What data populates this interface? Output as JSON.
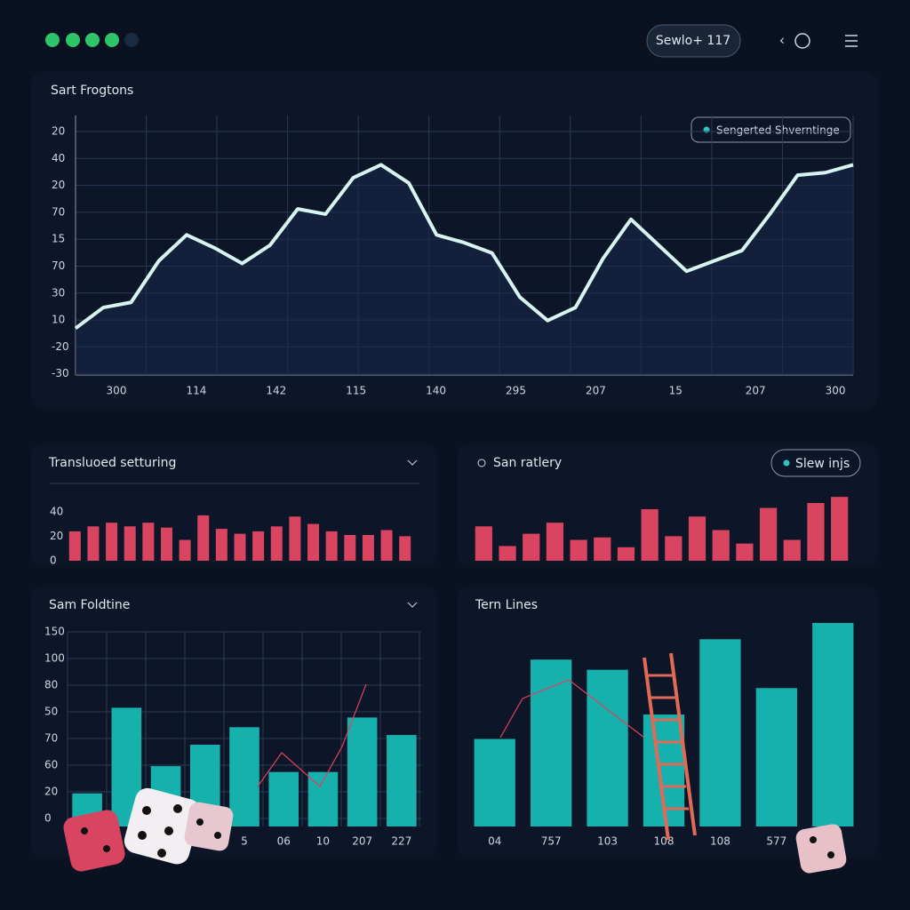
{
  "header": {
    "status_pill": "Sewlo+ 117"
  },
  "main_chart": {
    "type": "line",
    "title": "Sart Frogtons",
    "legend": "Sengerted Shverntinge",
    "y_labels": [
      "20",
      "40",
      "20",
      "70",
      "15",
      "70",
      "30",
      "10",
      "-20",
      "-30"
    ],
    "x_labels": [
      "300",
      "114",
      "142",
      "115",
      "140",
      "295",
      "207",
      "15",
      "207",
      "300"
    ],
    "values": [
      18,
      26,
      28,
      44,
      54,
      49,
      43,
      50,
      64,
      62,
      76,
      81,
      74,
      54,
      51,
      47,
      30,
      21,
      26,
      45,
      60,
      50,
      40,
      44,
      48,
      62,
      77,
      78,
      81
    ],
    "ylim": [
      0,
      100
    ]
  },
  "panels": [
    {
      "type": "bar",
      "title": "Transluoed setturing",
      "yticks": [
        0,
        20,
        40
      ],
      "ylim": [
        0,
        42
      ],
      "values": [
        24,
        28,
        31,
        28,
        31,
        27,
        17,
        37,
        26,
        22,
        24,
        28,
        36,
        30,
        24,
        21,
        21,
        25,
        20
      ]
    },
    {
      "type": "bar",
      "title": "San ratlery",
      "button": "Slew injs",
      "ylim": [
        0,
        55
      ],
      "values": [
        28,
        12,
        22,
        31,
        17,
        19,
        11,
        42,
        20,
        36,
        25,
        14,
        43,
        17,
        47,
        52
      ]
    },
    {
      "type": "bar",
      "title": "Sam Foldtine",
      "y_labels": [
        "150",
        "100",
        "80",
        "50",
        "70",
        "60",
        "20",
        "0"
      ],
      "ylim": [
        0,
        100
      ],
      "categories": [
        null,
        null,
        null,
        null,
        "5",
        "06",
        "10",
        "207",
        "227"
      ],
      "values": [
        17,
        61,
        31,
        42,
        51,
        28,
        28,
        56,
        47
      ]
    },
    {
      "type": "bar",
      "title": "Tern Lines",
      "ylim": [
        0,
        100
      ],
      "categories": [
        "04",
        "757",
        "103",
        "108",
        "108",
        "577",
        null
      ],
      "values": [
        43,
        82,
        77,
        55,
        92,
        68,
        100
      ]
    }
  ]
}
